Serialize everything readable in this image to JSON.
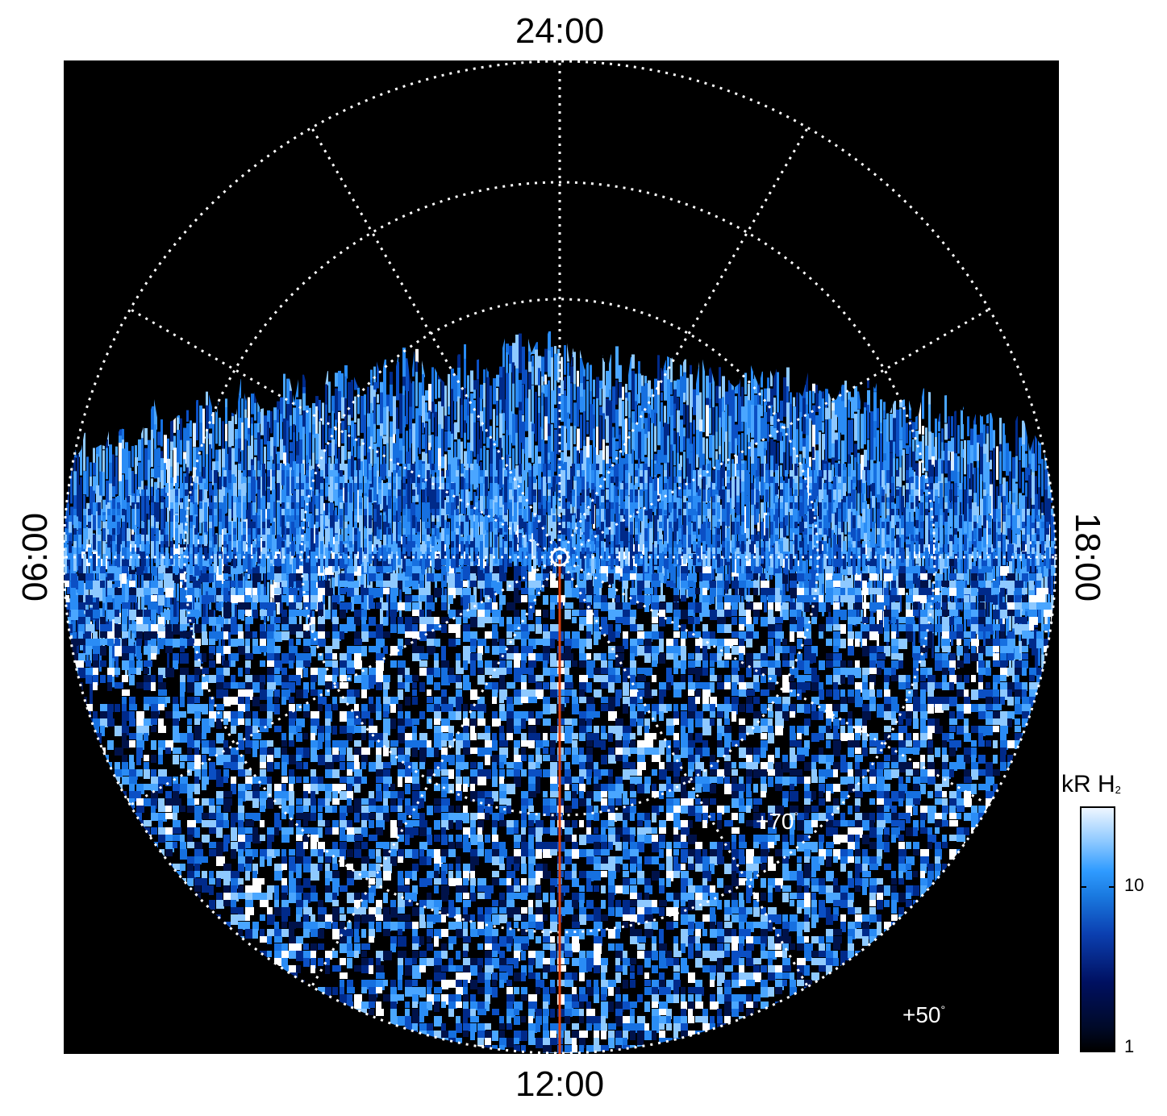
{
  "map": {
    "lt_top": "24:00",
    "lt_bottom": "12:00",
    "lt_left": "06:00",
    "lt_right": "18:00",
    "lat_labels": [
      "+70",
      "+50"
    ],
    "degree_symbol": "°",
    "background_color": "#000000",
    "grid_color": "#ffffff",
    "meridian_line_color": "#d9400f"
  },
  "colorbar": {
    "title": "kR H",
    "title_subscript": "2",
    "ticks": [
      "10",
      "1"
    ],
    "scale": "log",
    "colors": [
      "#000000",
      "#001060",
      "#1a7ae0",
      "#eef6ff"
    ]
  }
}
